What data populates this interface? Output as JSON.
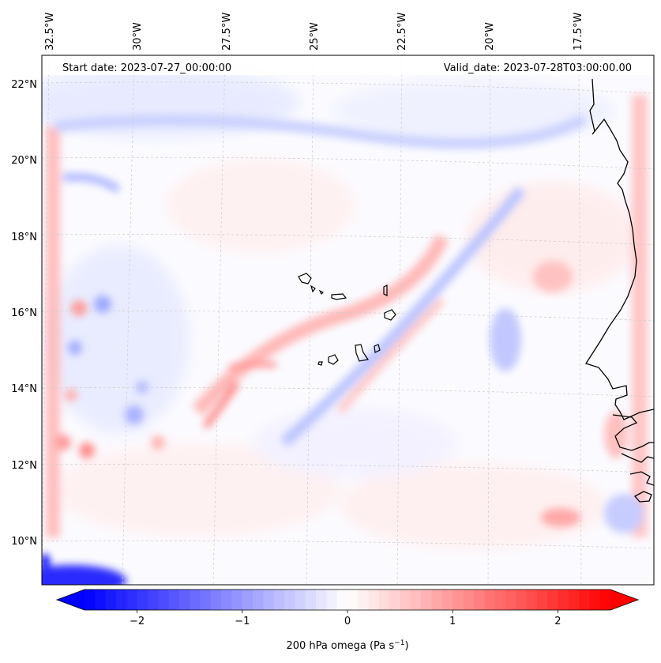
{
  "map": {
    "start_date": "Start date: 2023-07-27_00:00:00",
    "valid_date": "Valid_date: 2023-07-28T03:00:00.00",
    "lon_labels": [
      "32.5°W",
      "30°W",
      "27.5°W",
      "25°W",
      "22.5°W",
      "20°W",
      "17.5°W"
    ],
    "lat_labels": [
      "22°N",
      "20°N",
      "18°N",
      "16°N",
      "14°N",
      "12°N",
      "10°N"
    ],
    "field_colors": {
      "negative": "#0000ff",
      "zero": "#ffffff",
      "positive": "#ff0000"
    }
  },
  "colorbar": {
    "ticks": [
      {
        "value": -2,
        "label": "−2"
      },
      {
        "value": -1,
        "label": "−1"
      },
      {
        "value": 0,
        "label": "0"
      },
      {
        "value": 1,
        "label": "1"
      },
      {
        "value": 2,
        "label": "2"
      }
    ],
    "range": [
      -2.5,
      2.5
    ],
    "label_main": "200 hPa omega (Pa s",
    "label_sup": "−1",
    "label_tail": ")"
  }
}
